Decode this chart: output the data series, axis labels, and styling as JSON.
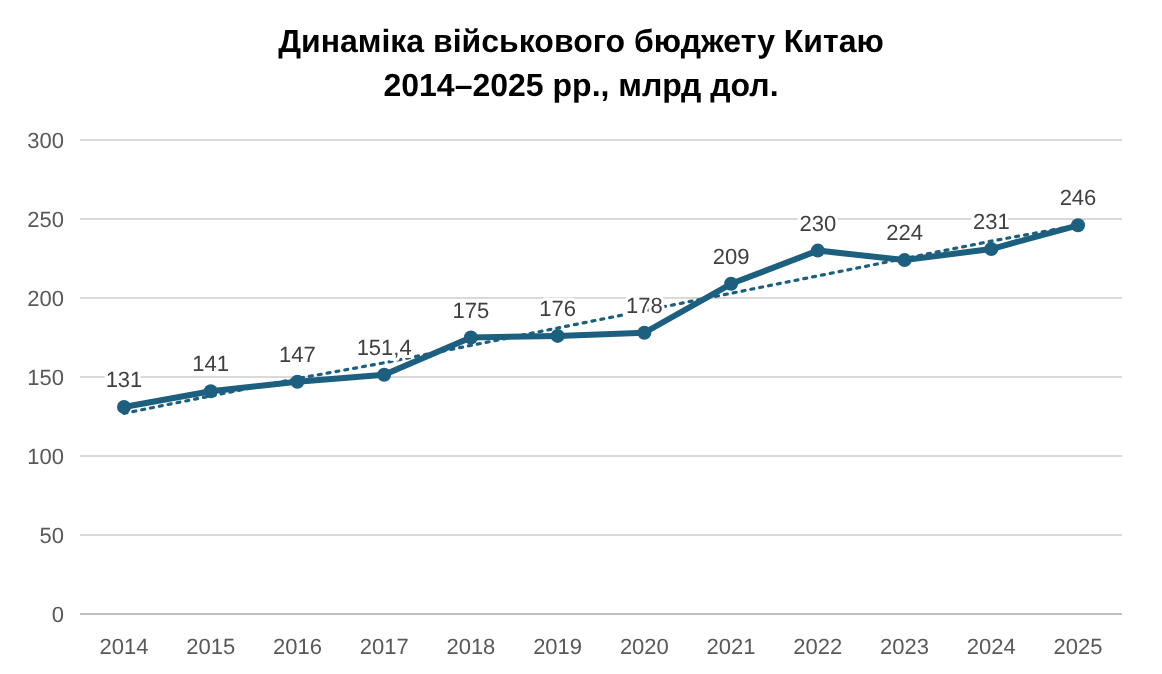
{
  "chart_data": {
    "type": "line",
    "title": "Динаміка військового бюджету Китаю\n2014–2025 рр., млрд дол.",
    "categories": [
      "2014",
      "2015",
      "2016",
      "2017",
      "2018",
      "2019",
      "2020",
      "2021",
      "2022",
      "2023",
      "2024",
      "2025"
    ],
    "series": [
      {
        "color": "#1d5f7f",
        "values": [
          131,
          141,
          147,
          151.4,
          175,
          176,
          178,
          209,
          230,
          224,
          231,
          246
        ],
        "value_labels": [
          "131",
          "141",
          "147",
          "151,4",
          "175",
          "176",
          "178",
          "209",
          "230",
          "224",
          "231",
          "246"
        ],
        "marker": "circle",
        "line_style": "solid"
      },
      {
        "type": "line",
        "color": "#1d5f7f",
        "values": [
          127,
          138,
          149,
          159,
          170,
          181,
          192,
          203,
          214,
          225,
          236,
          246
        ],
        "marker": "none",
        "line_style": "dotted"
      }
    ],
    "ylim": [
      0,
      300
    ],
    "yticks": [
      0,
      50,
      100,
      150,
      200,
      250,
      300
    ],
    "grid": "y"
  }
}
